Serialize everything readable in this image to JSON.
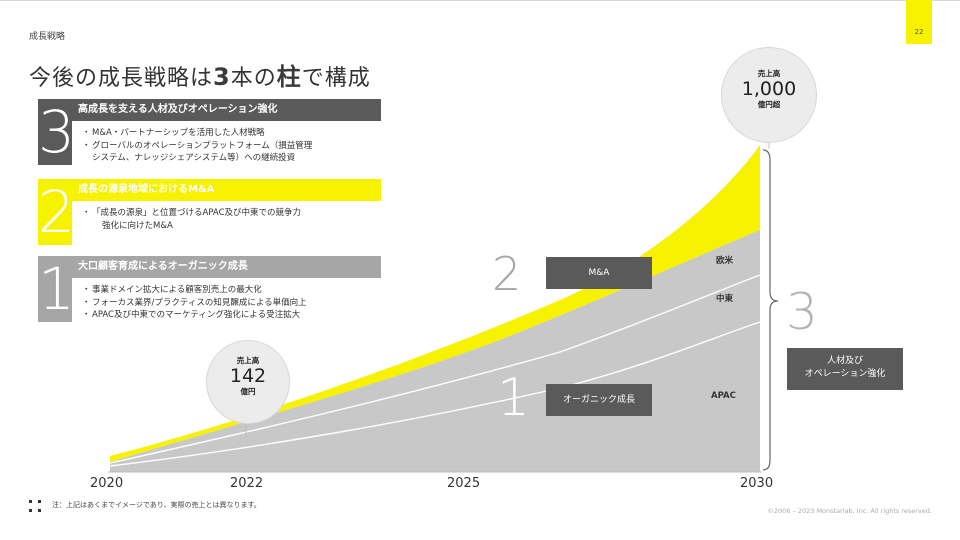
{
  "header": {
    "section_label": "成長戦略",
    "page_number": "22",
    "title_parts": [
      "今後の成長戦略は",
      "3",
      "本の",
      "柱",
      "で構成"
    ]
  },
  "pillars": [
    {
      "number": "3",
      "heading": "高成長を支える人材及びオペレーション強化",
      "bullets": [
        {
          "type": "bullet",
          "text": "M&A・パートナーシップを活用した人材戦略"
        },
        {
          "type": "bullet",
          "text": "グローバルのオペレーションプラットフォーム（損益管理"
        },
        {
          "type": "cont",
          "text": "システム、ナレッジシェアシステム等）への継続投資"
        }
      ]
    },
    {
      "number": "2",
      "heading": "成長の源泉地域におけるM&A",
      "bullets": [
        {
          "type": "bullet",
          "text": "「成長の源泉」と位置づけるAPAC及び中東での競争力"
        },
        {
          "type": "indent",
          "text": "強化に向けたM&A"
        }
      ]
    },
    {
      "number": "1",
      "heading": "大口顧客育成によるオーガニック成長",
      "bullets": [
        {
          "type": "bullet",
          "text": "事業ドメイン拡大による顧客別売上の最大化"
        },
        {
          "type": "bullet",
          "text": "フォーカス業界/プラクティスの知見醸成による単価向上"
        },
        {
          "type": "bullet",
          "text": "APAC及び中東でのマーケティング強化による受注拡大"
        }
      ]
    }
  ],
  "chart_data": {
    "type": "area",
    "x": [
      2020,
      2022,
      2025,
      2030
    ],
    "tick_labels": [
      "2020",
      "2022",
      "2025",
      "2030"
    ],
    "series": [
      {
        "name": "APAC",
        "color": "#c8c8c8"
      },
      {
        "name": "中東",
        "color": "#c8c8c8"
      },
      {
        "name": "欧米",
        "color": "#c8c8c8"
      },
      {
        "name": "M&A",
        "color": "#f7f200"
      }
    ],
    "start_value": {
      "label": "売上高",
      "value": "142",
      "unit": "億円",
      "year": 2022
    },
    "target_value": {
      "label": "売上高",
      "value": "1,000",
      "unit": "億円超",
      "year": 2030
    },
    "annotations": {
      "ma_box": "M&A",
      "organic_box": "オーガニック成長",
      "people_box_line1": "人材及び",
      "people_box_line2": "オペレーション強化",
      "num_2": "2",
      "num_1": "1",
      "num_3": "3"
    }
  },
  "footer": {
    "note": "注：上記はあくまでイメージであり、実際の売上とは異なります。",
    "copyright": "©2006 – 2023 Monstarlab, Inc. All rights reserved."
  },
  "colors": {
    "accent": "#f7f200",
    "dark": "#5a5a5a",
    "grey": "#a6a6a6"
  }
}
